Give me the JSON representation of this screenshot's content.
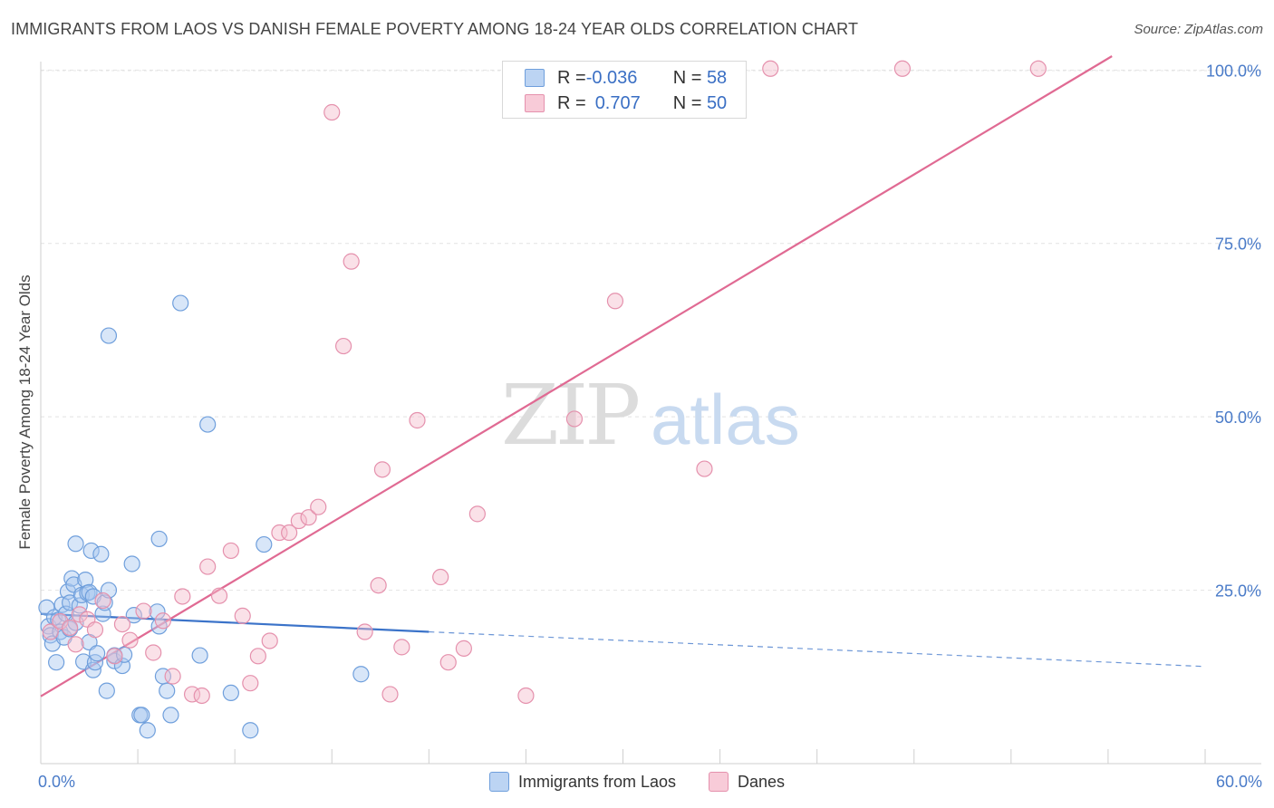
{
  "title": "IMMIGRANTS FROM LAOS VS DANISH FEMALE POVERTY AMONG 18-24 YEAR OLDS CORRELATION CHART",
  "source": "Source: ZipAtlas.com",
  "watermark": {
    "zip": "ZIP",
    "atlas": "atlas"
  },
  "legend": {
    "series1": {
      "r_label": "R = ",
      "r_value": "-0.036",
      "n_label": "N = ",
      "n_value": "58"
    },
    "series2": {
      "r_label": "R = ",
      "r_value": "0.707",
      "n_label": "N = ",
      "n_value": "50"
    }
  },
  "bottom_legend": {
    "series1": "Immigrants from Laos",
    "series2": "Danes"
  },
  "colors": {
    "blue_fill": "#a9c8ef",
    "blue_stroke": "#6f9fdc",
    "blue_line": "#3b73c9",
    "pink_fill": "#f5bccd",
    "pink_stroke": "#e591ad",
    "pink_line": "#e06a93",
    "tick_text": "#4a7bc8"
  },
  "chart_data": {
    "type": "scatter",
    "title": "IMMIGRANTS FROM LAOS VS DANISH FEMALE POVERTY AMONG 18-24 YEAR OLDS CORRELATION CHART",
    "xlabel": "",
    "ylabel": "Female Poverty Among 18-24 Year Olds",
    "xlim": [
      0,
      60
    ],
    "ylim": [
      0,
      102
    ],
    "x_tick_labels": [
      {
        "value": 0,
        "label": "0.0%"
      },
      {
        "value": 60,
        "label": "60.0%"
      }
    ],
    "y_tick_labels": [
      {
        "value": 25,
        "label": "25.0%"
      },
      {
        "value": 50,
        "label": "50.0%"
      },
      {
        "value": 75,
        "label": "75.0%"
      },
      {
        "value": 100,
        "label": "100.0%"
      }
    ],
    "series": [
      {
        "name": "Immigrants from Laos",
        "r": -0.036,
        "n": 58,
        "points": [
          [
            0.3,
            22.5
          ],
          [
            0.4,
            19.8
          ],
          [
            0.5,
            18.5
          ],
          [
            0.6,
            17.3
          ],
          [
            0.7,
            21.1
          ],
          [
            0.8,
            14.6
          ],
          [
            0.9,
            20.7
          ],
          [
            1.0,
            19.0
          ],
          [
            1.1,
            22.9
          ],
          [
            1.2,
            18.2
          ],
          [
            1.3,
            21.6
          ],
          [
            1.4,
            24.8
          ],
          [
            1.5,
            23.2
          ],
          [
            1.5,
            19.4
          ],
          [
            1.6,
            26.7
          ],
          [
            1.7,
            25.8
          ],
          [
            1.8,
            20.3
          ],
          [
            1.8,
            31.7
          ],
          [
            2.0,
            22.8
          ],
          [
            2.1,
            24.3
          ],
          [
            2.2,
            14.7
          ],
          [
            2.3,
            26.5
          ],
          [
            2.4,
            24.6
          ],
          [
            2.5,
            17.5
          ],
          [
            2.5,
            24.7
          ],
          [
            2.6,
            30.7
          ],
          [
            2.7,
            13.5
          ],
          [
            2.7,
            24.1
          ],
          [
            2.8,
            14.6
          ],
          [
            2.9,
            15.9
          ],
          [
            3.1,
            30.2
          ],
          [
            3.2,
            21.6
          ],
          [
            3.3,
            23.2
          ],
          [
            3.4,
            10.5
          ],
          [
            3.5,
            25.0
          ],
          [
            3.5,
            61.7
          ],
          [
            3.8,
            14.8
          ],
          [
            3.8,
            15.6
          ],
          [
            4.2,
            14.1
          ],
          [
            4.3,
            15.7
          ],
          [
            4.7,
            28.8
          ],
          [
            4.8,
            21.4
          ],
          [
            5.1,
            7.0
          ],
          [
            5.2,
            7.0
          ],
          [
            5.5,
            4.8
          ],
          [
            6.1,
            19.8
          ],
          [
            6.1,
            32.4
          ],
          [
            6.3,
            12.6
          ],
          [
            6.5,
            10.5
          ],
          [
            6.7,
            7.0
          ],
          [
            7.2,
            66.4
          ],
          [
            8.2,
            15.6
          ],
          [
            8.6,
            48.9
          ],
          [
            9.8,
            10.2
          ],
          [
            10.8,
            4.8
          ],
          [
            11.5,
            31.6
          ],
          [
            16.5,
            12.9
          ],
          [
            6.0,
            21.9
          ]
        ]
      },
      {
        "name": "Danes",
        "r": 0.707,
        "n": 50,
        "points": [
          [
            0.5,
            19.0
          ],
          [
            1.0,
            20.5
          ],
          [
            1.5,
            19.6
          ],
          [
            1.8,
            17.2
          ],
          [
            2.0,
            21.5
          ],
          [
            2.4,
            20.8
          ],
          [
            2.8,
            19.3
          ],
          [
            3.2,
            23.5
          ],
          [
            3.8,
            15.5
          ],
          [
            4.2,
            20.1
          ],
          [
            4.6,
            17.8
          ],
          [
            5.3,
            22.0
          ],
          [
            5.8,
            16.0
          ],
          [
            6.3,
            20.6
          ],
          [
            6.8,
            12.6
          ],
          [
            7.3,
            24.1
          ],
          [
            7.8,
            10.0
          ],
          [
            8.3,
            9.8
          ],
          [
            8.6,
            28.4
          ],
          [
            9.2,
            24.2
          ],
          [
            9.8,
            30.7
          ],
          [
            10.4,
            21.3
          ],
          [
            10.8,
            11.6
          ],
          [
            11.2,
            15.5
          ],
          [
            11.8,
            17.7
          ],
          [
            12.3,
            33.3
          ],
          [
            12.8,
            33.3
          ],
          [
            13.3,
            35.0
          ],
          [
            13.8,
            35.5
          ],
          [
            14.3,
            37.0
          ],
          [
            15.0,
            93.9
          ],
          [
            15.6,
            60.2
          ],
          [
            16.0,
            72.4
          ],
          [
            16.7,
            19.0
          ],
          [
            17.4,
            25.7
          ],
          [
            17.6,
            42.4
          ],
          [
            18.0,
            10.0
          ],
          [
            18.6,
            16.8
          ],
          [
            19.4,
            49.5
          ],
          [
            20.6,
            26.9
          ],
          [
            21.0,
            14.6
          ],
          [
            21.8,
            16.6
          ],
          [
            22.5,
            36.0
          ],
          [
            25.0,
            9.8
          ],
          [
            27.5,
            49.7
          ],
          [
            29.6,
            66.7
          ],
          [
            34.2,
            42.5
          ],
          [
            37.6,
            100.2
          ],
          [
            44.4,
            100.2
          ],
          [
            51.4,
            100.2
          ]
        ]
      }
    ],
    "trendlines": [
      {
        "series": "Immigrants from Laos",
        "solid": [
          [
            0,
            21.6
          ],
          [
            20,
            19.0
          ]
        ],
        "dashed": [
          [
            20,
            19.0
          ],
          [
            60,
            14.0
          ]
        ]
      },
      {
        "series": "Danes",
        "solid": [
          [
            0,
            9.7
          ],
          [
            55.2,
            102
          ]
        ]
      }
    ]
  }
}
